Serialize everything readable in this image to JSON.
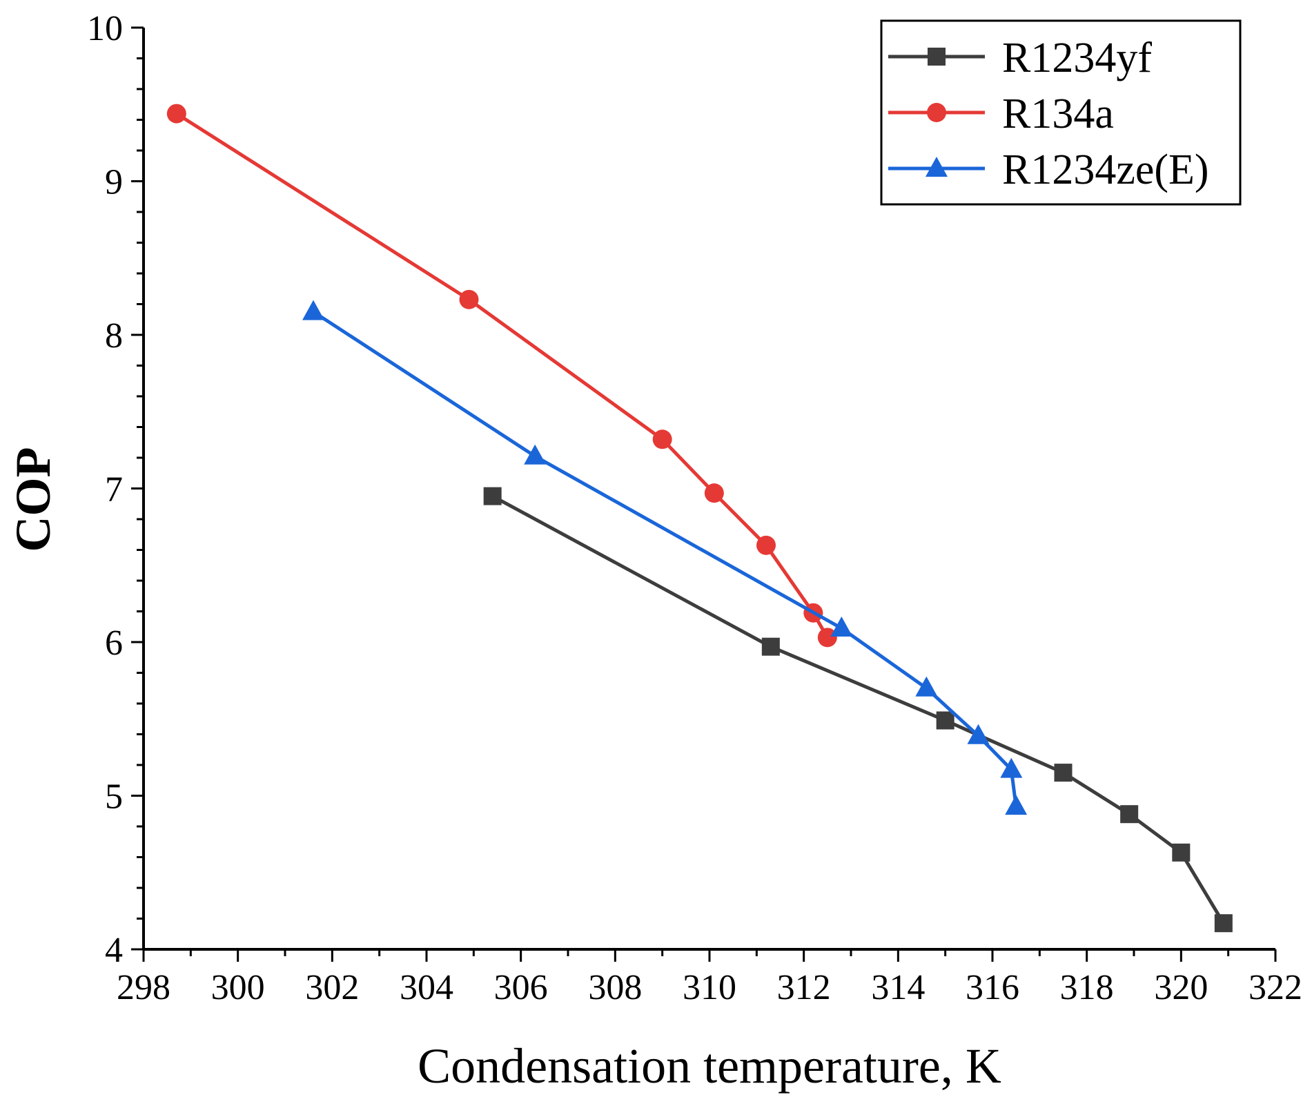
{
  "chart_data": {
    "type": "line",
    "title": "",
    "xlabel": "Condensation temperature, K",
    "ylabel": "COP",
    "xlim": [
      298,
      322
    ],
    "ylim": [
      4,
      10
    ],
    "xticks": [
      298,
      300,
      302,
      304,
      306,
      308,
      310,
      312,
      314,
      316,
      318,
      320,
      322
    ],
    "yticks": [
      4,
      5,
      6,
      7,
      8,
      9,
      10
    ],
    "xtick_labels": [
      "298",
      "300",
      "302",
      "304",
      "306",
      "308",
      "310",
      "312",
      "314",
      "316",
      "318",
      "320",
      "322"
    ],
    "ytick_labels": [
      "4",
      "5",
      "6",
      "7",
      "8",
      "9",
      "10"
    ],
    "grid": false,
    "legend_position": "top-right",
    "series": [
      {
        "name": "R1234yf",
        "color": "#3d3d3d",
        "marker": "square",
        "x": [
          305.4,
          311.3,
          315.0,
          317.5,
          318.9,
          320.0,
          320.9
        ],
        "y": [
          6.95,
          5.97,
          5.49,
          5.15,
          4.88,
          4.63,
          4.17
        ]
      },
      {
        "name": "R134a",
        "color": "#e53935",
        "marker": "circle",
        "x": [
          298.7,
          304.9,
          309.0,
          310.1,
          311.2,
          312.2,
          312.5
        ],
        "y": [
          9.44,
          8.23,
          7.32,
          6.97,
          6.63,
          6.19,
          6.03
        ]
      },
      {
        "name": "R1234ze(E)",
        "color": "#1a66d9",
        "marker": "triangle",
        "x": [
          301.6,
          306.3,
          312.8,
          314.6,
          315.7,
          316.4,
          316.5
        ],
        "y": [
          8.15,
          7.21,
          6.09,
          5.7,
          5.39,
          5.17,
          4.93
        ]
      }
    ]
  }
}
